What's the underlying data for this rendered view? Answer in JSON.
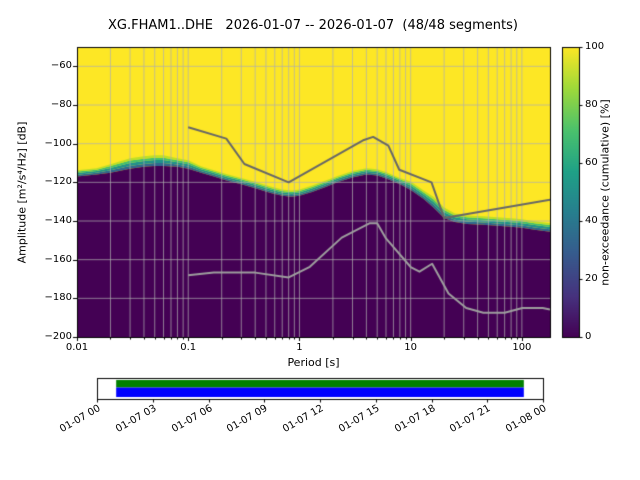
{
  "title": "XG.FHAM1..DHE   2026-01-07 -- 2026-01-07  (48/48 segments)",
  "axes": {
    "xlabel": "Period [s]",
    "ylabel": "Amplitude [m²/s⁴/Hz] [dB]",
    "x_ticks": [
      {
        "label": "0.01",
        "value": 0.01
      },
      {
        "label": "0.1",
        "value": 0.1
      },
      {
        "label": "1",
        "value": 1
      },
      {
        "label": "10",
        "value": 10
      },
      {
        "label": "100",
        "value": 100
      }
    ],
    "y_ticks": [
      {
        "label": "−60",
        "value": -60
      },
      {
        "label": "−80",
        "value": -80
      },
      {
        "label": "−100",
        "value": -100
      },
      {
        "label": "−120",
        "value": -120
      },
      {
        "label": "−140",
        "value": -140
      },
      {
        "label": "−160",
        "value": -160
      },
      {
        "label": "−180",
        "value": -180
      },
      {
        "label": "−200",
        "value": -200
      }
    ]
  },
  "colorbar": {
    "label": "non-exceedance (cumulative) [%]",
    "ticks": [
      {
        "label": "0",
        "value": 0
      },
      {
        "label": "20",
        "value": 20
      },
      {
        "label": "40",
        "value": 40
      },
      {
        "label": "60",
        "value": 60
      },
      {
        "label": "80",
        "value": 80
      },
      {
        "label": "100",
        "value": 100
      }
    ]
  },
  "timeline": {
    "green": "#008000",
    "blue": "#0000ff",
    "coverage": [
      0.043,
      0.957
    ],
    "tick_labels": [
      "01-07 00",
      "01-07 03",
      "01-07 06",
      "01-07 09",
      "01-07 12",
      "01-07 15",
      "01-07 18",
      "01-07 21",
      "01-08 00"
    ]
  },
  "chart_data": {
    "type": "heatmap",
    "title": "XG.FHAM1..DHE   2026-01-07 -- 2026-01-07  (48/48 segments)",
    "station": "XG.FHAM1..DHE",
    "date_range": "2026-01-07 -- 2026-01-07",
    "segments": "48/48",
    "xlabel": "Period [s]",
    "ylabel": "Amplitude [m²/s⁴/Hz] [dB]",
    "colorbar_label": "non-exceedance (cumulative) [%]",
    "x_scale": "log",
    "x_range_s": [
      0.01,
      179
    ],
    "y_range_db": [
      -200,
      -50
    ],
    "cbar_range": [
      0,
      100
    ],
    "colormap": "viridis",
    "psd_mode_curve": {
      "period_s": [
        0.01,
        0.015,
        0.02,
        0.03,
        0.04,
        0.05,
        0.06,
        0.08,
        0.1,
        0.13,
        0.17,
        0.22,
        0.3,
        0.4,
        0.55,
        0.7,
        0.85,
        1,
        1.3,
        1.7,
        2.2,
        3,
        4,
        5,
        6,
        8,
        10,
        13,
        16,
        20,
        25,
        32,
        45,
        60,
        80,
        100,
        130,
        179
      ],
      "db": [
        -117,
        -116,
        -115,
        -113,
        -112,
        -111.5,
        -111.5,
        -112,
        -113,
        -115,
        -117,
        -119,
        -121,
        -123,
        -125.5,
        -127,
        -127.5,
        -127,
        -125,
        -122.5,
        -120,
        -117.5,
        -116,
        -116.5,
        -118,
        -121,
        -124,
        -128.5,
        -133,
        -138.5,
        -140.5,
        -141.5,
        -142,
        -142.5,
        -143,
        -143.5,
        -144.5,
        -145.5
      ],
      "transition_band_db": [
        3,
        3,
        4,
        5,
        5,
        5,
        5,
        4,
        4,
        3,
        3,
        3,
        3,
        3,
        3,
        3,
        3,
        3,
        3,
        3,
        3,
        3,
        3,
        3,
        3,
        3,
        4,
        4,
        5,
        5,
        4,
        4,
        4,
        4,
        4,
        4,
        4,
        4
      ]
    },
    "noise_models": {
      "nhnm": {
        "period_s": [
          0.1,
          0.22,
          0.32,
          0.8,
          3.8,
          4.6,
          6.3,
          7.9,
          15.4,
          20,
          179
        ],
        "db": [
          -91.5,
          -97.4,
          -110.5,
          -120,
          -98.1,
          -96.5,
          -101,
          -113.5,
          -120,
          -138.5,
          -129
        ]
      },
      "nlnm": {
        "period_s": [
          0.1,
          0.17,
          0.4,
          0.8,
          1.24,
          2.4,
          4.3,
          5,
          6,
          10,
          12,
          15.6,
          21.9,
          31.6,
          45,
          70,
          101,
          154,
          179
        ],
        "db": [
          -168,
          -166.7,
          -166.7,
          -169.2,
          -163.7,
          -148.6,
          -141.1,
          -141.1,
          -149,
          -163.8,
          -166.2,
          -162.1,
          -177.5,
          -185,
          -187.5,
          -187.5,
          -185,
          -185,
          -185.8
        ]
      }
    },
    "colors": {
      "high": "#fde725",
      "low": "#440154",
      "grid": "#b0b0b0",
      "nhnm": "#676767",
      "nlnm": "#9e9e9e",
      "band_layers": [
        {
          "from": 0,
          "to": 0.3,
          "color": "#31688e"
        },
        {
          "from": 0.3,
          "to": 0.6,
          "color": "#21918c"
        },
        {
          "from": 0.6,
          "to": 0.85,
          "color": "#44bf70"
        },
        {
          "from": 0.85,
          "to": 1.1,
          "color": "#bddf26"
        }
      ],
      "viridis_stops": [
        [
          0,
          "#440154"
        ],
        [
          0.14,
          "#46327e"
        ],
        [
          0.29,
          "#365c8d"
        ],
        [
          0.43,
          "#277f8e"
        ],
        [
          0.57,
          "#1fa187"
        ],
        [
          0.71,
          "#4ac16d"
        ],
        [
          0.86,
          "#a0da39"
        ],
        [
          1,
          "#fde725"
        ]
      ]
    }
  }
}
